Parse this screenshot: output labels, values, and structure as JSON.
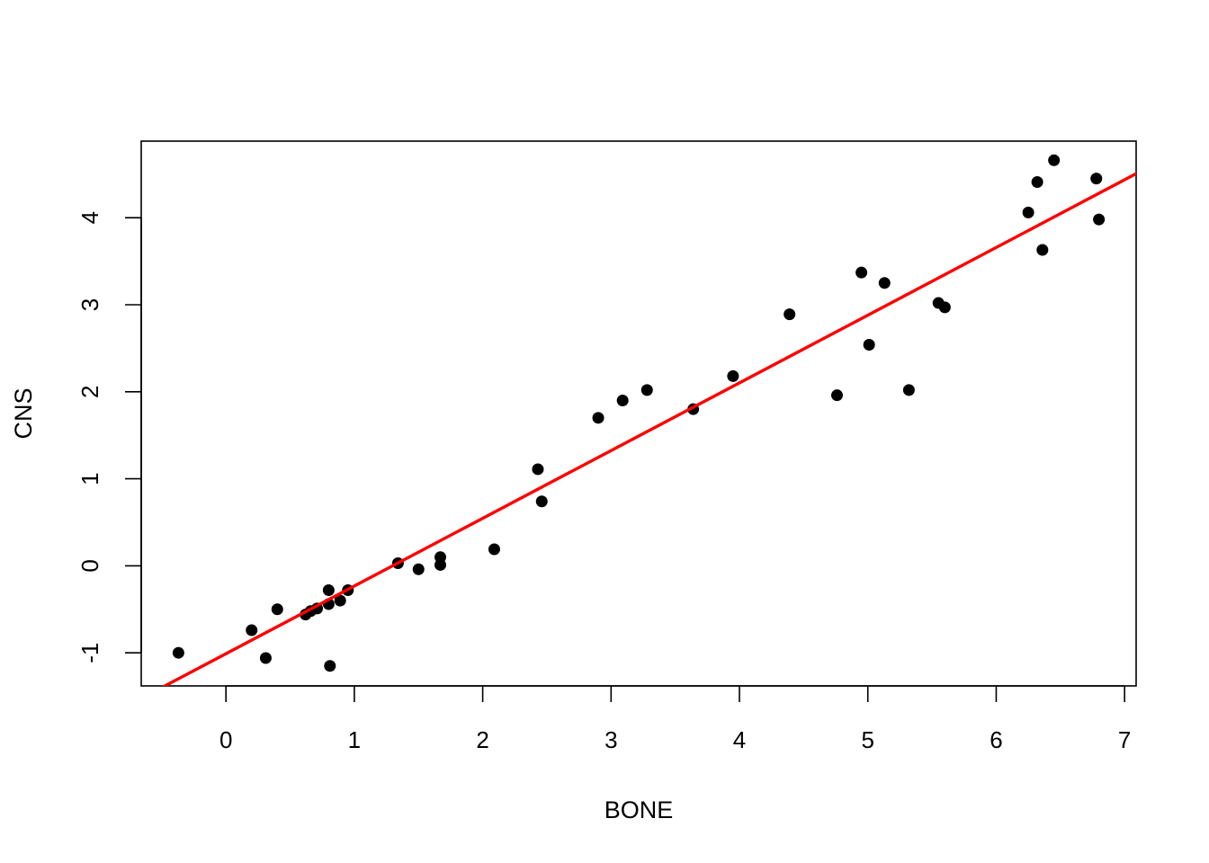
{
  "chart_data": {
    "type": "scatter",
    "title": "",
    "xlabel": "BONE",
    "ylabel": "CNS",
    "xlim": [
      -0.66,
      7.09
    ],
    "ylim": [
      -1.38,
      4.88
    ],
    "x_ticks": [
      0,
      1,
      2,
      3,
      4,
      5,
      6,
      7
    ],
    "x_tick_labels": [
      "0",
      "1",
      "2",
      "3",
      "4",
      "5",
      "6",
      "7"
    ],
    "y_ticks": [
      -1,
      0,
      1,
      2,
      3,
      4
    ],
    "y_tick_labels": [
      "-1",
      "0",
      "1",
      "2",
      "3",
      "4"
    ],
    "grid": false,
    "legend": null,
    "point_color": "#000000",
    "line_color": "#ff0000",
    "points": [
      {
        "x": -0.37,
        "y": -1.0
      },
      {
        "x": 0.2,
        "y": -0.74
      },
      {
        "x": 0.31,
        "y": -1.06
      },
      {
        "x": 0.4,
        "y": -0.5
      },
      {
        "x": 0.62,
        "y": -0.56
      },
      {
        "x": 0.66,
        "y": -0.52
      },
      {
        "x": 0.71,
        "y": -0.49
      },
      {
        "x": 0.8,
        "y": -0.44
      },
      {
        "x": 0.8,
        "y": -0.28
      },
      {
        "x": 0.81,
        "y": -1.15
      },
      {
        "x": 0.89,
        "y": -0.4
      },
      {
        "x": 0.95,
        "y": -0.28
      },
      {
        "x": 1.34,
        "y": 0.03
      },
      {
        "x": 1.5,
        "y": -0.04
      },
      {
        "x": 1.67,
        "y": 0.1
      },
      {
        "x": 1.67,
        "y": 0.01
      },
      {
        "x": 2.09,
        "y": 0.19
      },
      {
        "x": 2.43,
        "y": 1.11
      },
      {
        "x": 2.46,
        "y": 0.74
      },
      {
        "x": 2.9,
        "y": 1.7
      },
      {
        "x": 3.09,
        "y": 1.9
      },
      {
        "x": 3.28,
        "y": 2.02
      },
      {
        "x": 3.64,
        "y": 1.8
      },
      {
        "x": 3.95,
        "y": 2.18
      },
      {
        "x": 4.39,
        "y": 2.89
      },
      {
        "x": 4.76,
        "y": 1.96
      },
      {
        "x": 4.95,
        "y": 3.37
      },
      {
        "x": 5.01,
        "y": 2.54
      },
      {
        "x": 5.13,
        "y": 3.25
      },
      {
        "x": 5.32,
        "y": 2.02
      },
      {
        "x": 5.55,
        "y": 3.02
      },
      {
        "x": 5.6,
        "y": 2.97
      },
      {
        "x": 6.25,
        "y": 4.06
      },
      {
        "x": 6.32,
        "y": 4.41
      },
      {
        "x": 6.36,
        "y": 3.63
      },
      {
        "x": 6.45,
        "y": 4.66
      },
      {
        "x": 6.78,
        "y": 4.45
      },
      {
        "x": 6.8,
        "y": 3.98
      }
    ],
    "regression_line": {
      "intercept": -1.01,
      "slope": 0.778
    }
  }
}
